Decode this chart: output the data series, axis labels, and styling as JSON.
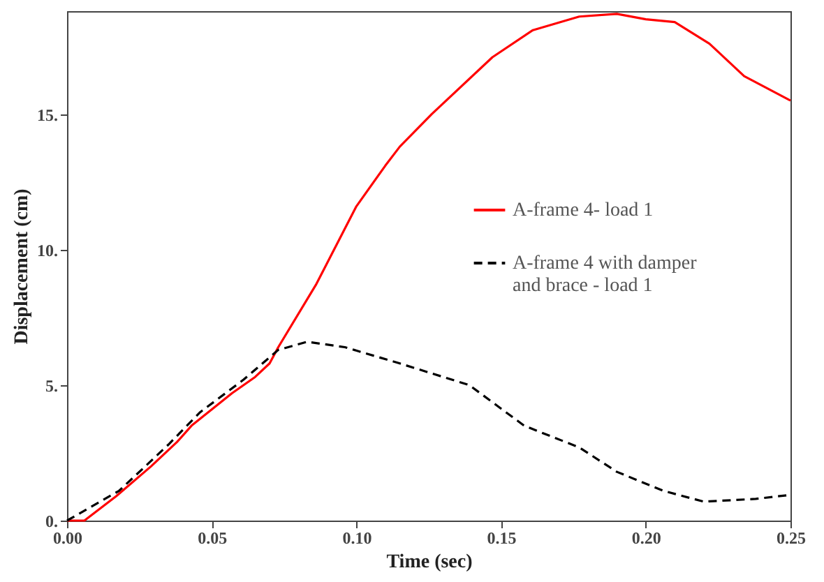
{
  "chart_data": {
    "type": "line",
    "xlabel": "Time (sec)",
    "ylabel": "Displacement (cm)",
    "x": [
      0,
      0.006,
      0.017,
      0.029,
      0.038,
      0.043,
      0.05,
      0.057,
      0.065,
      0.07,
      0.073,
      0.086,
      0.1,
      0.11,
      0.115,
      0.126,
      0.147,
      0.161,
      0.177,
      0.19,
      0.2,
      0.21,
      0.222,
      0.234,
      0.25
    ],
    "series": [
      {
        "name": "A-frame 4- load 1",
        "color": "#ff0000",
        "line_style": "solid",
        "values": [
          0,
          0,
          0.9,
          2,
          2.9,
          3.5,
          4.1,
          4.7,
          5.3,
          5.8,
          6.4,
          8.7,
          11.6,
          13.1,
          13.8,
          15.0,
          17.1,
          18.1,
          18.6,
          18.7,
          18.5,
          18.4,
          17.6,
          16.4,
          15.5
        ]
      },
      {
        "name": "A-frame 4 with damper and brace - load 1",
        "color": "#000000",
        "line_style": "dashed",
        "x": [
          0,
          0.018,
          0.035,
          0.046,
          0.061,
          0.073,
          0.083,
          0.096,
          0.115,
          0.139,
          0.158,
          0.177,
          0.19,
          0.206,
          0.22,
          0.238,
          0.25
        ],
        "values": [
          0,
          1.1,
          2.8,
          4.0,
          5.2,
          6.3,
          6.6,
          6.4,
          5.8,
          5.0,
          3.5,
          2.7,
          1.8,
          1.1,
          0.7,
          0.8,
          0.95
        ]
      }
    ],
    "xlim": [
      0,
      0.25
    ],
    "ylim": [
      0,
      18.8
    ],
    "xticks": [
      {
        "value": 0,
        "label": "0.00"
      },
      {
        "value": 0.05,
        "label": "0.05"
      },
      {
        "value": 0.1,
        "label": "0.10"
      },
      {
        "value": 0.15,
        "label": "0.15"
      },
      {
        "value": 0.2,
        "label": "0.20"
      },
      {
        "value": 0.25,
        "label": "0.25"
      }
    ],
    "yticks": [
      {
        "value": 0,
        "label": "0."
      },
      {
        "value": 5,
        "label": "5."
      },
      {
        "value": 10,
        "label": "10."
      },
      {
        "value": 15,
        "label": "15."
      }
    ],
    "legend": "right",
    "grid": false
  }
}
